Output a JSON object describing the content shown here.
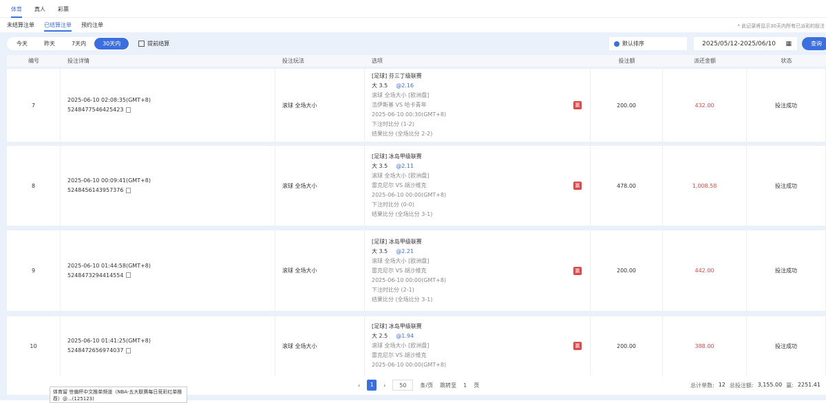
{
  "top_tabs": [
    "体育",
    "真人",
    "彩票"
  ],
  "sub_tabs": [
    "未结算注单",
    "已结算注单",
    "预约注单"
  ],
  "note": "* 此记录将显示30天内所有已派彩的投注",
  "filter": {
    "periods": [
      "今天",
      "昨天",
      "7天内",
      "30天内"
    ],
    "early_settle": "提前结算",
    "sort": "默认排序",
    "date_range": "2025/05/12-2025/06/10",
    "query": "查询"
  },
  "columns": [
    "编号",
    "投注详情",
    "投注玩法",
    "选项",
    "投注额",
    "派还金额",
    "状态"
  ],
  "rows": [
    {
      "no": "7",
      "time": "2025-06-10 02:08:35(GMT+8)",
      "id": "5248477546425423",
      "play": "滚球  全场大小",
      "league": "[足球] 芬三丁级联赛",
      "pick": "大 3.5",
      "odds": "@2.16",
      "market": "滚球  全场大小 [欧洲盘]",
      "match": "浩伊斯基 VS 哈卡青年",
      "kickoff": "2025-06-10 00:30(GMT+8)",
      "bet_score": "下注时比分 (1-2)",
      "result": "结果比分 (全场比分 2-2)",
      "badge": "赢",
      "stake": "200.00",
      "payout": "432.00",
      "status": "投注成功"
    },
    {
      "no": "8",
      "time": "2025-06-10 00:09:41(GMT+8)",
      "id": "5248456143957376",
      "play": "滚球  全场大小",
      "league": "[足球] 冰岛甲级联赛",
      "pick": "大 3.5",
      "odds": "@2.11",
      "market": "滚球  全场大小 [欧洲盘]",
      "match": "雷克尼尔 VS 胡沙维克",
      "kickoff": "2025-06-10 00:00(GMT+8)",
      "bet_score": "下注时比分 (0-0)",
      "result": "结果比分 (全场比分 3-1)",
      "badge": "赢",
      "stake": "478.00",
      "payout": "1,008.58",
      "status": "投注成功"
    },
    {
      "no": "9",
      "time": "2025-06-10 01:44:58(GMT+8)",
      "id": "5248473294414554",
      "play": "滚球  全场大小",
      "league": "[足球] 冰岛甲级联赛",
      "pick": "大 3.5",
      "odds": "@2.21",
      "market": "滚球  全场大小 [欧洲盘]",
      "match": "雷克尼尔 VS 胡沙维克",
      "kickoff": "2025-06-10 00:00(GMT+8)",
      "bet_score": "下注时比分 (2-1)",
      "result": "结果比分 (全场比分 3-1)",
      "badge": "赢",
      "stake": "200.00",
      "payout": "442.00",
      "status": "投注成功"
    },
    {
      "no": "10",
      "time": "2025-06-10 01:41:25(GMT+8)",
      "id": "5248472656974037",
      "play": "滚球  全场大小",
      "league": "[足球] 冰岛甲级联赛",
      "pick": "大 2.5",
      "odds": "@1.94",
      "market": "滚球  全场大小 [欧洲盘]",
      "match": "雷克尼尔 VS 胡沙维克",
      "kickoff": "2025-06-10 00:00(GMT+8)",
      "bet_score": "",
      "result": "",
      "badge": "赢",
      "stake": "200.00",
      "payout": "388.00",
      "status": "投注成功"
    }
  ],
  "pager": {
    "page": "1",
    "size": "50",
    "per_page": "条/页",
    "goto": "跳转至",
    "goto_page": "1",
    "page_unit": "页"
  },
  "totals": {
    "count_label": "总计单数:",
    "count": "12",
    "stake_label": "总投注额:",
    "stake": "3,155.00",
    "win_label": "赢:",
    "win": "2251.41"
  },
  "tooltip": "体育留 世偏杯中文推单频道（NBA-五大联赛每日竞彩红单推荐）@...(125123)",
  "colors": {
    "accent": "#3b6fe0",
    "win": "#e04848"
  }
}
